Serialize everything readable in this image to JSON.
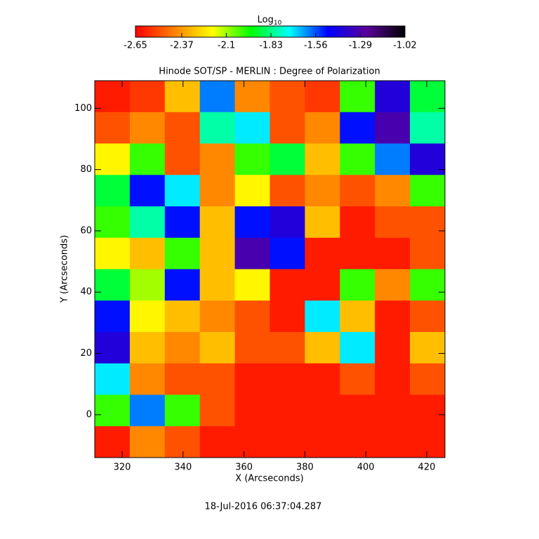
{
  "chart_data": {
    "type": "heatmap",
    "title": "Hinode SOT/SP - MERLIN : Degree of Polarization",
    "x_label": "X (Arcseconds)",
    "y_label": "Y (Arcseconds)",
    "timestamp": "18-Jul-2016 06:37:04.287",
    "colorbar_label": {
      "base": "Log",
      "sub": "10"
    },
    "clim": [
      -2.65,
      -1.02
    ],
    "cticks": [
      -2.65,
      -2.37,
      -2.1,
      -1.83,
      -1.56,
      -1.29,
      -1.02
    ],
    "colormap": [
      "#ff0000",
      "#ff7f00",
      "#ffff00",
      "#00ff00",
      "#00ffff",
      "#0000ff",
      "#5a009a",
      "#000000"
    ],
    "xlim": [
      311,
      426
    ],
    "ylim": [
      -14,
      109
    ],
    "xticks": [
      320,
      340,
      360,
      380,
      400,
      420
    ],
    "yticks": [
      0,
      20,
      40,
      60,
      80,
      100
    ],
    "z": [
      [
        -2.6,
        -2.55,
        -2.3,
        -1.6,
        -2.4,
        -2.5,
        -2.55,
        -2.0,
        -1.4,
        -1.9
      ],
      [
        -2.5,
        -2.4,
        -2.5,
        -1.8,
        -1.7,
        -2.5,
        -2.4,
        -1.5,
        -1.3,
        -1.8
      ],
      [
        -2.2,
        -2.0,
        -2.5,
        -2.4,
        -2.0,
        -1.9,
        -2.3,
        -2.0,
        -1.6,
        -1.4
      ],
      [
        -1.9,
        -1.5,
        -1.7,
        -2.4,
        -2.2,
        -2.5,
        -2.4,
        -2.5,
        -2.4,
        -2.0
      ],
      [
        -2.0,
        -1.8,
        -1.5,
        -2.3,
        -1.5,
        -1.4,
        -2.3,
        -2.6,
        -2.5,
        -2.5
      ],
      [
        -2.2,
        -2.3,
        -2.0,
        -2.3,
        -1.3,
        -1.5,
        -2.6,
        -2.6,
        -2.6,
        -2.5
      ],
      [
        -1.9,
        -2.1,
        -1.5,
        -2.3,
        -2.2,
        -2.6,
        -2.6,
        -2.0,
        -2.4,
        -2.0
      ],
      [
        -1.5,
        -2.2,
        -2.3,
        -2.4,
        -2.5,
        -2.6,
        -1.7,
        -2.3,
        -2.6,
        -2.5
      ],
      [
        -1.4,
        -2.3,
        -2.4,
        -2.3,
        -2.5,
        -2.5,
        -2.3,
        -1.7,
        -2.6,
        -2.3
      ],
      [
        -1.7,
        -2.4,
        -2.5,
        -2.5,
        -2.6,
        -2.6,
        -2.6,
        -2.5,
        -2.6,
        -2.5
      ],
      [
        -2.0,
        -1.6,
        -2.0,
        -2.5,
        -2.6,
        -2.6,
        -2.6,
        -2.6,
        -2.6,
        -2.6
      ],
      [
        -2.6,
        -2.4,
        -2.5,
        -2.6,
        -2.6,
        -2.6,
        -2.6,
        -2.6,
        -2.6,
        -2.6
      ]
    ]
  }
}
